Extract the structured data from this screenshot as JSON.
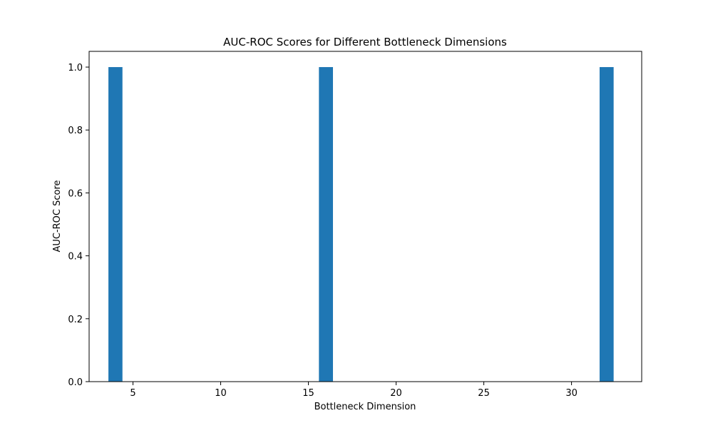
{
  "chart_data": {
    "type": "bar",
    "title": "AUC-ROC Scores for Different Bottleneck Dimensions",
    "xlabel": "Bottleneck Dimension",
    "ylabel": "AUC-ROC Score",
    "x": [
      4,
      16,
      32
    ],
    "values": [
      1.0,
      1.0,
      1.0
    ],
    "bar_width": 0.8,
    "xlim": [
      2.5,
      34.0
    ],
    "ylim": [
      0,
      1.05
    ],
    "xticks": [
      5,
      10,
      15,
      20,
      25,
      30
    ],
    "yticks": [
      0.0,
      0.2,
      0.4,
      0.6,
      0.8,
      1.0
    ],
    "xtick_labels": [
      "5",
      "10",
      "15",
      "20",
      "25",
      "30"
    ],
    "ytick_labels": [
      "0.0",
      "0.2",
      "0.4",
      "0.6",
      "0.8",
      "1.0"
    ],
    "grid": false,
    "bar_color": "#1f77b4"
  }
}
